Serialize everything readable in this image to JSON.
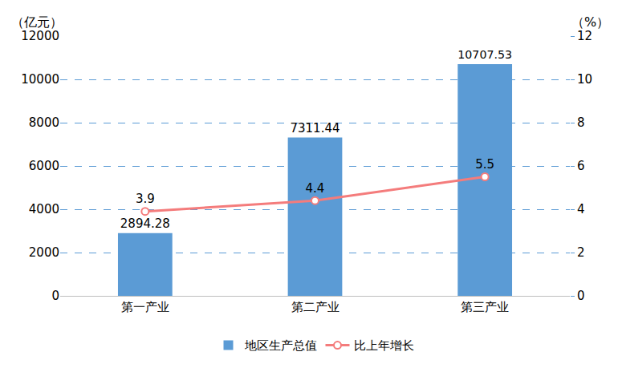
{
  "chart_data": {
    "type": "bar",
    "categories": [
      "第一产业",
      "第二产业",
      "第三产业"
    ],
    "ylabel": "（亿元）",
    "y2label": "（%）",
    "ylim": [
      0,
      12000
    ],
    "yticks": [
      0,
      2000,
      4000,
      6000,
      8000,
      10000,
      12000
    ],
    "y2lim": [
      0,
      12
    ],
    "y2ticks": [
      0,
      2,
      4,
      6,
      8,
      10,
      12
    ],
    "grid": true,
    "legend": "bottom",
    "data_labels": true,
    "series": [
      {
        "name": "地区生产总值",
        "type": "bar",
        "color": "#5b9bd5",
        "values": [
          2894.28,
          7311.44,
          10707.53
        ]
      },
      {
        "name": "比上年增长",
        "type": "line",
        "color": "#f47c7c",
        "marker": "circle",
        "axis": "y2",
        "values": [
          3.9,
          4.4,
          5.5
        ]
      }
    ]
  }
}
